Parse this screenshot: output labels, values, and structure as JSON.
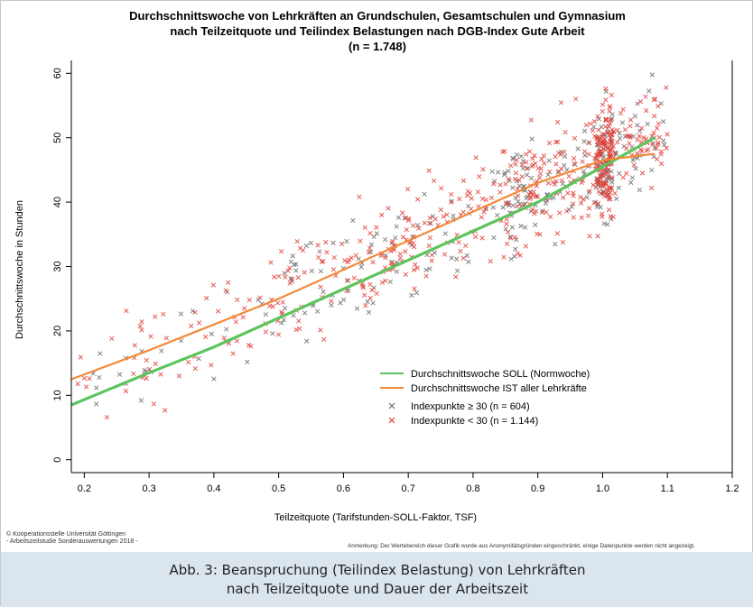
{
  "figure": {
    "credit_line1": "© Kooperationsstelle Universität Göttingen",
    "credit_line2": "- Arbeitszeitstudie Sonderauswertungen 2018 -",
    "note": "Anmerkung: Der Wertebereich dieser Grafik wurde aus Anonymitätsgründen eingeschränkt, einige Datenpunkte werden nicht angezeigt."
  },
  "caption": {
    "line1": "Abb. 3: Beanspruchung (Teilindex Belastung) von Lehrkräften",
    "line2": "nach Teilzeitquote und Dauer der Arbeitszeit"
  },
  "chart_data": {
    "type": "scatter",
    "title": "Durchschnittswoche von Lehrkräften an Grundschulen, Gesamtschulen und Gymnasium",
    "subtitle": "nach Teilzeitquote und Teilindex Belastungen nach DGB-Index Gute Arbeit",
    "subtitle2": "(n = 1.748)",
    "xlabel": "Teilzeitquote (Tarifstunden-SOLL-Faktor, TSF)",
    "ylabel": "Durchschnittswoche in Stunden",
    "xlim": [
      0.18,
      1.2
    ],
    "ylim": [
      -2,
      62
    ],
    "x_ticks": [
      0.2,
      0.3,
      0.4,
      0.5,
      0.6,
      0.7,
      0.8,
      0.9,
      1.0,
      1.1,
      1.2
    ],
    "x_tick_labels": [
      "0.2",
      "0.3",
      "0.4",
      "0.5",
      "0.6",
      "0.7",
      "0.8",
      "0.9",
      "1.0",
      "1.1",
      "1.2"
    ],
    "y_ticks": [
      0,
      10,
      20,
      30,
      40,
      50,
      60
    ],
    "y_tick_labels": [
      "0",
      "10",
      "20",
      "30",
      "40",
      "50",
      "60"
    ],
    "grid": false,
    "legend_position": "bottom-right",
    "lines": [
      {
        "name": "Durchschnittswoche SOLL (Normwoche)",
        "color": "#5cc45c",
        "x": [
          0.18,
          0.3,
          0.4,
          0.5,
          0.6,
          0.7,
          0.8,
          0.9,
          1.0,
          1.08
        ],
        "y": [
          8.5,
          13.5,
          17.5,
          22.0,
          26.5,
          31.0,
          35.5,
          40.0,
          45.5,
          50.0
        ]
      },
      {
        "name": "Durchschnittswoche IST aller Lehrkräfte",
        "color": "#f28a3a",
        "x": [
          0.18,
          0.3,
          0.4,
          0.5,
          0.6,
          0.7,
          0.8,
          0.9,
          1.0,
          1.08
        ],
        "y": [
          12.5,
          17.0,
          21.0,
          25.0,
          29.5,
          34.0,
          38.5,
          43.0,
          46.5,
          47.5
        ]
      }
    ],
    "series": [
      {
        "name": "Indexpunkte ≥ 30 (n = 604)",
        "color": "#6e6e6e",
        "marker": "x",
        "n": 604
      },
      {
        "name": "Indexpunkte < 30 (n = 1.144)",
        "color": "#e0403a",
        "marker": "x",
        "n": 1144
      }
    ]
  }
}
